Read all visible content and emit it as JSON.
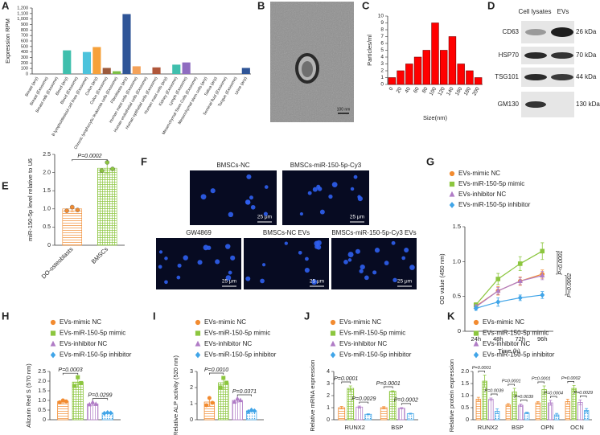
{
  "figure": {
    "panel_labels": [
      "A",
      "B",
      "C",
      "D",
      "E",
      "F",
      "G",
      "H",
      "I",
      "J",
      "K"
    ],
    "micrograph": {
      "scale_bar": "100 nm"
    },
    "western_blot": {
      "columns": [
        "Cell lysates",
        "EVs"
      ],
      "rows": [
        {
          "protein": "CD63",
          "size": "26 kDa"
        },
        {
          "protein": "HSP70",
          "size": "70 kDa"
        },
        {
          "protein": "TSG101",
          "size": "44 kDa"
        },
        {
          "protein": "GM130",
          "size": "130 kDa"
        }
      ]
    },
    "fluorescence": [
      {
        "label": "BMSCs-NC",
        "scale_bar": "25 μm"
      },
      {
        "label": "BMSCs-miR-150-5p-Cy3",
        "scale_bar": "25 μm"
      },
      {
        "label": "GW4869",
        "scale_bar": "25 μm"
      },
      {
        "label": "BMSCs-NC EVs",
        "scale_bar": "25 μm"
      },
      {
        "label": "BMSCs-miR-150-5p-Cy3 EVs",
        "scale_bar": "25 μm"
      }
    ]
  },
  "chart_data": [
    {
      "type": "bar",
      "categories": [
        "Breast (any)",
        "Breast (Exosome)",
        "Breast milk (Exosome)",
        "Blood (any)",
        "Blood (Exosome)",
        "B lymphoblastoid cell lines (Exosome)",
        "Colon (any)",
        "Colon (Exosome)",
        "Chronic lymphocytic leukemia cells (Exosome)",
        "Fibroblasts (any)",
        "Human mast cells (Exosome)",
        "Human endothelial cells (Exosome)",
        "Human epithelial cells (Exosome)",
        "Human mast cells (any)",
        "Kidney (Exosome)",
        "Lymph (Exosome)",
        "Mesenchymal Stem Cells (Exosome)",
        "Mesenchymal stem cells (any)",
        "Saliva (any)",
        "Seminal fluid (Exosome)",
        "Tongue (Exosome)",
        "Urine (any)"
      ],
      "values": [
        0,
        0,
        0,
        430,
        0,
        400,
        490,
        110,
        50,
        1090,
        140,
        0,
        120,
        0,
        170,
        210,
        0,
        0,
        0,
        0,
        0,
        110
      ],
      "colors": [
        "#5b9bd5",
        "#5b9bd5",
        "#5b9bd5",
        "#3fbfad",
        "#5b9bd5",
        "#4cc3dc",
        "#f6a13a",
        "#9c5a3c",
        "#7cbf45",
        "#2f5597",
        "#f4a259",
        "#5b9bd5",
        "#b0573a",
        "#5b9bd5",
        "#3fbfad",
        "#8e6cc0",
        "#5b9bd5",
        "#5b9bd5",
        "#5b9bd5",
        "#5b9bd5",
        "#5b9bd5",
        "#2f5597"
      ],
      "ylabel": "Expression RPM",
      "ylim": [
        0,
        1200
      ],
      "yticks": [
        0,
        100,
        200,
        300,
        400,
        500,
        600,
        700,
        800,
        900,
        {
          "value": 1000,
          "label": "1,000"
        },
        {
          "value": 1100,
          "label": "1,100"
        },
        {
          "value": 1200,
          "label": "1,200"
        }
      ]
    },
    {
      "type": "bar",
      "categories": [
        "0",
        "20",
        "40",
        "60",
        "80",
        "100",
        "120",
        "140",
        "160",
        "180",
        "200"
      ],
      "values": [
        1,
        2,
        3,
        4,
        5,
        9,
        5,
        7,
        3,
        2,
        1
      ],
      "color": "#ff0000",
      "xlabel": "Size(nm)",
      "ylabel": "Particles/ml",
      "ylim": [
        0,
        10
      ],
      "yticks": [
        0,
        1,
        2,
        3,
        4,
        5,
        6,
        7,
        8,
        9,
        10
      ]
    },
    {
      "type": "bar",
      "categories": [
        "DO-osteoblasts",
        "BMSCs"
      ],
      "values": [
        1,
        2.12
      ],
      "errors": [
        0.07,
        0.13
      ],
      "points": [
        [
          0.95,
          1.05,
          0.97
        ],
        [
          2.05,
          2.28,
          2.1
        ]
      ],
      "colors": [
        "#f28b30",
        "#8cc63f"
      ],
      "ylabel": "miR-150-5p level relative to U6",
      "ylim": [
        0,
        2.5
      ],
      "yticks": [
        0,
        0.5,
        {
          "value": 1,
          "label": "1.0"
        },
        1.5,
        {
          "value": 2,
          "label": "2.0"
        },
        2.5
      ],
      "annotations": [
        "P=0.0002"
      ]
    },
    {
      "type": "line",
      "categories": [
        "24h",
        "48h",
        "72h",
        "96h"
      ],
      "series": [
        {
          "name": "EVs-mimic NC",
          "color": "#f28b30",
          "values": [
            0.36,
            0.58,
            0.72,
            0.82
          ],
          "errors": [
            0.03,
            0.06,
            0.06,
            0.06
          ]
        },
        {
          "name": "EVs-miR-150-5p mimic",
          "color": "#8cc63f",
          "values": [
            0.38,
            0.75,
            0.97,
            1.15
          ],
          "errors": [
            0.03,
            0.08,
            0.1,
            0.12
          ]
        },
        {
          "name": "EVs-inhibitor NC",
          "color": "#b07cc6",
          "values": [
            0.35,
            0.58,
            0.72,
            0.8
          ],
          "errors": [
            0.03,
            0.05,
            0.05,
            0.06
          ]
        },
        {
          "name": "EVs-miR-150-5p inhibitor",
          "color": "#41a5e8",
          "values": [
            0.33,
            0.42,
            0.48,
            0.52
          ],
          "errors": [
            0.03,
            0.06,
            0.04,
            0.05
          ]
        }
      ],
      "xlabel": "Time (h)",
      "ylabel": "OD value (450 nm)",
      "ylim": [
        0,
        1.5
      ],
      "yticks": [
        0,
        0.5,
        {
          "value": 1,
          "label": "1.0"
        },
        1.5
      ],
      "legend": "top",
      "annotations": [
        "P<0.0001",
        "P=0.0002"
      ]
    },
    {
      "type": "bar",
      "series": [
        {
          "name": "EVs-mimic NC",
          "color": "#f28b30",
          "values": [
            0.95
          ],
          "errors": [
            0.08
          ],
          "points": [
            [
              0.9,
              1.0,
              0.95
            ]
          ]
        },
        {
          "name": "EVs-miR-150-5p mimic",
          "color": "#8cc63f",
          "values": [
            1.95
          ],
          "errors": [
            0.25
          ],
          "points": [
            [
              1.75,
              2.2,
              1.9
            ]
          ]
        },
        {
          "name": "EVs-inhibitor NC",
          "color": "#b07cc6",
          "values": [
            0.82
          ],
          "errors": [
            0.07
          ],
          "points": [
            [
              0.78,
              0.9,
              0.8
            ]
          ]
        },
        {
          "name": "EVs-miR-150-5p inhibitor",
          "color": "#41a5e8",
          "values": [
            0.35
          ],
          "errors": [
            0.03
          ],
          "points": [
            [
              0.33,
              0.37,
              0.35
            ]
          ]
        }
      ],
      "ylabel": "Alizarin Red S (570 nm)",
      "ylim": [
        0,
        2.5
      ],
      "yticks": [
        0,
        0.5,
        {
          "value": 1,
          "label": "1.0"
        },
        1.5,
        {
          "value": 2,
          "label": "2.0"
        },
        2.5
      ],
      "legend": "top",
      "annotations": [
        "P=0.0003",
        "P=0.0299"
      ]
    },
    {
      "type": "bar",
      "series": [
        {
          "name": "EVs-mimic NC",
          "color": "#f28b30",
          "values": [
            1.1
          ],
          "errors": [
            0.25
          ],
          "points": [
            [
              0.9,
              1.35,
              1.05
            ]
          ]
        },
        {
          "name": "EVs-miR-150-5p mimic",
          "color": "#8cc63f",
          "values": [
            2.3
          ],
          "errors": [
            0.35
          ],
          "points": [
            [
              2.0,
              2.6,
              2.3
            ]
          ]
        },
        {
          "name": "EVs-inhibitor NC",
          "color": "#b07cc6",
          "values": [
            1.2
          ],
          "errors": [
            0.1
          ],
          "points": [
            [
              1.1,
              1.3,
              1.2
            ]
          ]
        },
        {
          "name": "EVs-miR-150-5p inhibitor",
          "color": "#41a5e8",
          "values": [
            0.55
          ],
          "errors": [
            0.06
          ],
          "points": [
            [
              0.5,
              0.6,
              0.55
            ]
          ]
        }
      ],
      "ylabel": "Relative ALP activity (520 nm)",
      "ylim": [
        0,
        3
      ],
      "yticks": [
        0,
        1,
        2,
        3
      ],
      "legend": "top",
      "annotations": [
        "P=0.0010",
        "P=0.0371"
      ]
    },
    {
      "type": "bar",
      "categories": [
        "RUNX2",
        "BSP"
      ],
      "series": [
        {
          "name": "EVs-mimic NC",
          "color": "#f28b30",
          "values": [
            1.0,
            1.0
          ],
          "errors": [
            0.1,
            0.08
          ]
        },
        {
          "name": "EVs-miR-150-5p mimic",
          "color": "#8cc63f",
          "values": [
            2.6,
            2.35
          ],
          "errors": [
            0.2,
            0.05
          ]
        },
        {
          "name": "EVs-inhibitor NC",
          "color": "#b07cc6",
          "values": [
            1.05,
            0.95
          ],
          "errors": [
            0.08,
            0.06
          ]
        },
        {
          "name": "EVs-miR-150-5p inhibitor",
          "color": "#41a5e8",
          "values": [
            0.45,
            0.5
          ],
          "errors": [
            0.04,
            0.04
          ]
        }
      ],
      "ylabel": "Relative mRNA expression",
      "ylim": [
        0,
        4
      ],
      "yticks": [
        0,
        1,
        2,
        3,
        4
      ],
      "legend": "top",
      "annotations": [
        "P=0.0001",
        "P=0.0029",
        "P=0.0001",
        "P=0.0002"
      ]
    },
    {
      "type": "bar",
      "categories": [
        "RUNX2",
        "BSP",
        "OPN",
        "OCN"
      ],
      "series": [
        {
          "name": "EVs-mimic NC",
          "color": "#f28b30",
          "values": [
            0.85,
            0.62,
            0.7,
            0.75
          ],
          "errors": [
            0.08,
            0.05,
            0.05,
            0.1
          ]
        },
        {
          "name": "EVs-miR-150-5p mimic",
          "color": "#8cc63f",
          "values": [
            1.6,
            1.15,
            1.25,
            1.3
          ],
          "errors": [
            0.25,
            0.15,
            0.15,
            0.12
          ]
        },
        {
          "name": "EVs-inhibitor NC",
          "color": "#b07cc6",
          "values": [
            0.85,
            0.6,
            0.7,
            0.72
          ],
          "errors": [
            0.05,
            0.05,
            0.1,
            0.1
          ]
        },
        {
          "name": "EVs-miR-150-5p inhibitor",
          "color": "#41a5e8",
          "values": [
            0.35,
            0.28,
            0.2,
            0.38
          ],
          "errors": [
            0.1,
            0.03,
            0.06,
            0.08
          ]
        }
      ],
      "ylabel": "Relative protein expression",
      "ylim": [
        0,
        2
      ],
      "yticks": [
        0,
        0.5,
        {
          "value": 1,
          "label": "1.0"
        },
        1.5,
        {
          "value": 2,
          "label": "2.0"
        }
      ],
      "legend": "top",
      "annotations": [
        "P=0.0001",
        "P=0.0039",
        "P=0.0001",
        "P=0.0039",
        "P=0.0001",
        "P=0.0004",
        "P=0.0002",
        "P=0.0029"
      ]
    }
  ]
}
